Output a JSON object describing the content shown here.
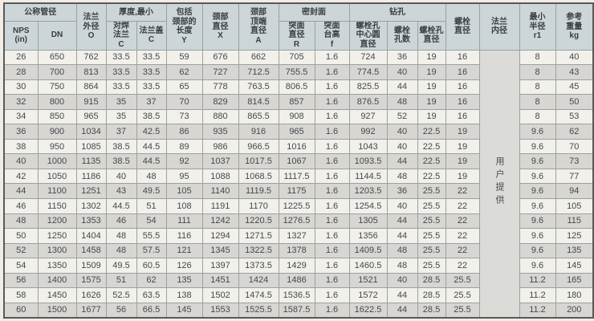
{
  "table": {
    "groups": {
      "nominal_diameter": "公称管径",
      "thickness_min": "厚度,最小",
      "sealing_face": "密封面",
      "drilling": "钻孔"
    },
    "headers": {
      "nps": "NPS\n(in)",
      "dn": "DN",
      "flange_od_o": "法兰\n外径\nO",
      "weld_neck_flange_c": "对焊\n法兰\nC",
      "flange_cover_c": "法兰盖\nC",
      "length_incl_neck_y": "包括\n颈部的\n长度\nY",
      "neck_dia_x": "颈部\n直径\nX",
      "neck_top_dia_a": "颈部\n顶端\n直径\nA",
      "raised_face_dia_r": "突面\n直径\nR",
      "raised_face_height_f": "突面\n台高\nf",
      "bolt_circle_dia": "螺栓孔\n中心圆\n直径",
      "bolt_hole_count": "螺栓\n孔数",
      "bolt_hole_dia": "螺栓孔\n直径",
      "bolt_dia": "螺栓\n直径",
      "flange_bore": "法兰\n内径",
      "min_radius_r1": "最小\n半径\nr1",
      "ref_weight_kg": "参考\n重量\nkg"
    },
    "bore_note": "用户提供",
    "column_keys": [
      "nps",
      "dn",
      "flange_od_o",
      "weld_neck_flange_c",
      "flange_cover_c",
      "length_incl_neck_y",
      "neck_dia_x",
      "neck_top_dia_a",
      "raised_face_dia_r",
      "raised_face_height_f",
      "bolt_circle_dia",
      "bolt_hole_count",
      "bolt_hole_dia",
      "bolt_dia",
      "min_radius_r1",
      "ref_weight_kg"
    ],
    "rows": [
      [
        26,
        650,
        762,
        33.5,
        33.5,
        59,
        676,
        662,
        705,
        1.6,
        724,
        36,
        19,
        16,
        8,
        40
      ],
      [
        28,
        700,
        813,
        33.5,
        33.5,
        62,
        727,
        712.5,
        755.5,
        1.6,
        774.5,
        40,
        19,
        16,
        8,
        43
      ],
      [
        30,
        750,
        864,
        33.5,
        33.5,
        65,
        778,
        763.5,
        806.5,
        1.6,
        825.5,
        44,
        19,
        16,
        8,
        45
      ],
      [
        32,
        800,
        915,
        35,
        37,
        70,
        829,
        814.5,
        857,
        1.6,
        876.5,
        48,
        19,
        16,
        8,
        50
      ],
      [
        34,
        850,
        965,
        35,
        38.5,
        73,
        880,
        865.5,
        908,
        1.6,
        927,
        52,
        19,
        16,
        8,
        53
      ],
      [
        36,
        900,
        1034,
        37,
        42.5,
        86,
        935,
        916,
        965,
        1.6,
        992,
        40,
        22.5,
        19,
        9.6,
        62
      ],
      [
        38,
        950,
        1085,
        38.5,
        44.5,
        89,
        986,
        966.5,
        1016,
        1.6,
        1043,
        40,
        22.5,
        19,
        9.6,
        70
      ],
      [
        40,
        1000,
        1135,
        38.5,
        44.5,
        92,
        1037,
        1017.5,
        1067,
        1.6,
        1093.5,
        44,
        22.5,
        19,
        9.6,
        73
      ],
      [
        42,
        1050,
        1186,
        40,
        48,
        95,
        1088,
        1068.5,
        1117.5,
        1.6,
        1144.5,
        48,
        22.5,
        19,
        9.6,
        77
      ],
      [
        44,
        1100,
        1251,
        43,
        49.5,
        105,
        1140,
        1119.5,
        1175,
        1.6,
        1203.5,
        36,
        25.5,
        22,
        9.6,
        94
      ],
      [
        46,
        1150,
        1302,
        44.5,
        51,
        108,
        1191,
        1170,
        1225.5,
        1.6,
        1254.5,
        40,
        25.5,
        22,
        9.6,
        105
      ],
      [
        48,
        1200,
        1353,
        46,
        54,
        111,
        1242,
        1220.5,
        1276.5,
        1.6,
        1305,
        44,
        25.5,
        22,
        9.6,
        115
      ],
      [
        50,
        1250,
        1404,
        48,
        55.5,
        116,
        1294,
        1271.5,
        1327,
        1.6,
        1356,
        44,
        25.5,
        22,
        9.6,
        125
      ],
      [
        52,
        1300,
        1458,
        48,
        57.5,
        121,
        1345,
        1322.5,
        1378,
        1.6,
        1409.5,
        48,
        25.5,
        22,
        9.6,
        135
      ],
      [
        54,
        1350,
        1509,
        49.5,
        60.5,
        126,
        1397,
        1373.5,
        1429,
        1.6,
        1460.5,
        48,
        25.5,
        22,
        9.6,
        145
      ],
      [
        56,
        1400,
        1575,
        51,
        62,
        135,
        1451,
        1424,
        1486,
        1.6,
        1521,
        40,
        28.5,
        25.5,
        11.2,
        165
      ],
      [
        58,
        1450,
        1626,
        52.5,
        63.5,
        138,
        1502,
        1474.5,
        1536.5,
        1.6,
        1572,
        44,
        28.5,
        25.5,
        11.2,
        180
      ],
      [
        60,
        1500,
        1677,
        56,
        66.5,
        145,
        1553,
        1525.5,
        1587.5,
        1.6,
        1622.5,
        44,
        28.5,
        25.5,
        11.2,
        200
      ]
    ],
    "colors": {
      "header_bg": "#ccd5d8",
      "row_bg": "#f2f0ea",
      "row_alt_bg": "#d8d6d2",
      "bore_cell_bg": "#dbdbd7",
      "grid_line": "#9ba19e",
      "outer_border": "#565b59",
      "text": "#45484b",
      "page_bg": "#f2ece5"
    }
  }
}
